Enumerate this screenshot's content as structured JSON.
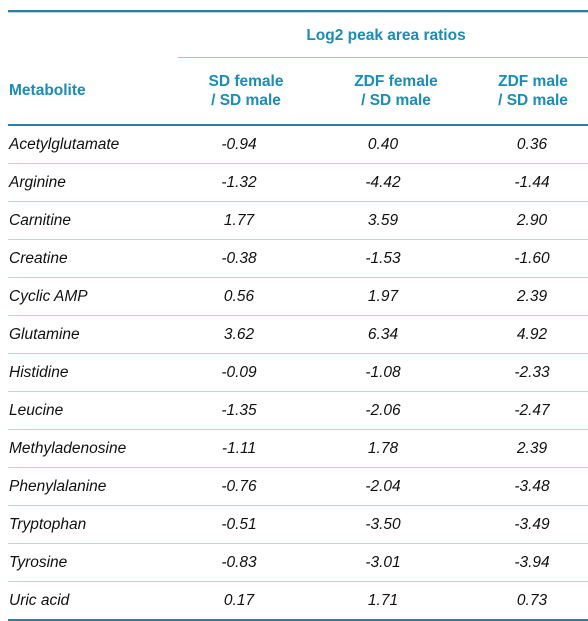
{
  "table": {
    "group_header": "Log2 peak area ratios",
    "columns": {
      "metabolite": "Metabolite",
      "sd_female_sd_male": "SD female\n/ SD male",
      "zdf_female_sd_male": "ZDF female\n/ SD male",
      "zdf_male_sd_male": "ZDF male\n/ SD male"
    },
    "rows": [
      {
        "metabolite": "Acetylglutamate",
        "sd_female_sd_male": "-0.94",
        "zdf_female_sd_male": "0.40",
        "zdf_male_sd_male": "0.36"
      },
      {
        "metabolite": "Arginine",
        "sd_female_sd_male": "-1.32",
        "zdf_female_sd_male": "-4.42",
        "zdf_male_sd_male": "-1.44"
      },
      {
        "metabolite": "Carnitine",
        "sd_female_sd_male": "1.77",
        "zdf_female_sd_male": "3.59",
        "zdf_male_sd_male": "2.90"
      },
      {
        "metabolite": "Creatine",
        "sd_female_sd_male": "-0.38",
        "zdf_female_sd_male": "-1.53",
        "zdf_male_sd_male": "-1.60"
      },
      {
        "metabolite": "Cyclic AMP",
        "sd_female_sd_male": "0.56",
        "zdf_female_sd_male": "1.97",
        "zdf_male_sd_male": "2.39"
      },
      {
        "metabolite": "Glutamine",
        "sd_female_sd_male": "3.62",
        "zdf_female_sd_male": "6.34",
        "zdf_male_sd_male": "4.92"
      },
      {
        "metabolite": "Histidine",
        "sd_female_sd_male": "-0.09",
        "zdf_female_sd_male": "-1.08",
        "zdf_male_sd_male": "-2.33"
      },
      {
        "metabolite": "Leucine",
        "sd_female_sd_male": "-1.35",
        "zdf_female_sd_male": "-2.06",
        "zdf_male_sd_male": "-2.47"
      },
      {
        "metabolite": "Methyladenosine",
        "sd_female_sd_male": "-1.11",
        "zdf_female_sd_male": "1.78",
        "zdf_male_sd_male": "2.39"
      },
      {
        "metabolite": "Phenylalanine",
        "sd_female_sd_male": "-0.76",
        "zdf_female_sd_male": "-2.04",
        "zdf_male_sd_male": "-3.48"
      },
      {
        "metabolite": "Tryptophan",
        "sd_female_sd_male": "-0.51",
        "zdf_female_sd_male": "-3.50",
        "zdf_male_sd_male": "-3.49"
      },
      {
        "metabolite": "Tyrosine",
        "sd_female_sd_male": "-0.83",
        "zdf_female_sd_male": "-3.01",
        "zdf_male_sd_male": "-3.94"
      },
      {
        "metabolite": "Uric acid",
        "sd_female_sd_male": "0.17",
        "zdf_female_sd_male": "1.71",
        "zdf_male_sd_male": "0.73"
      }
    ]
  },
  "colors": {
    "header_text": "#1a8cb8",
    "rule": "#2a7fa8",
    "row_divider": "#b9d7e4"
  }
}
